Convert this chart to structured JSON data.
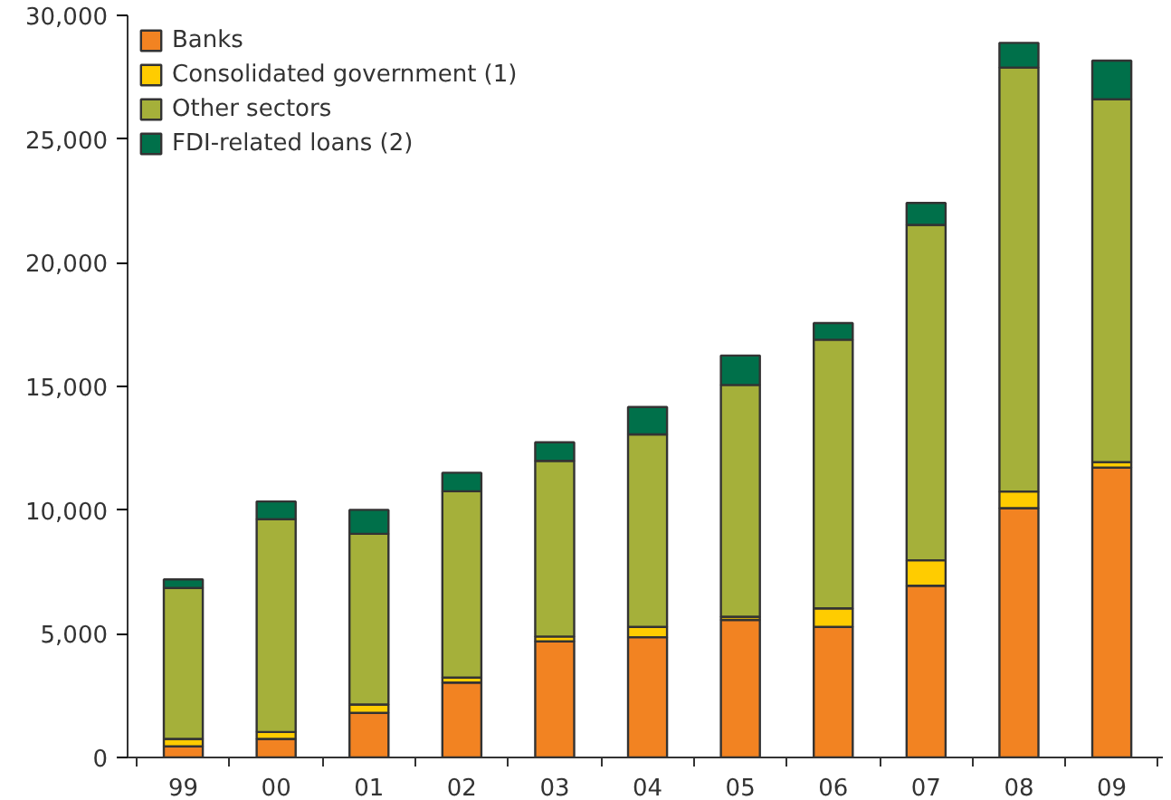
{
  "chart_data": {
    "type": "bar",
    "stacked": true,
    "categories": [
      "99",
      "00",
      "01",
      "02",
      "03",
      "04",
      "05",
      "06",
      "07",
      "08",
      "09"
    ],
    "series": [
      {
        "name": "Banks",
        "color": "#f28322",
        "values": [
          450,
          750,
          1800,
          3030,
          4690,
          4860,
          5560,
          5280,
          6940,
          10080,
          11720
        ]
      },
      {
        "name": "Consolidated government (1)",
        "color": "#ffcc00",
        "values": [
          300,
          280,
          340,
          200,
          200,
          420,
          130,
          750,
          1030,
          670,
          220
        ]
      },
      {
        "name": "Other sectors",
        "color": "#a5b03a",
        "values": [
          6100,
          8600,
          6900,
          7530,
          7100,
          7780,
          9370,
          10860,
          13560,
          17140,
          14670
        ]
      },
      {
        "name": "FDI-related loans (2)",
        "color": "#00704a",
        "values": [
          350,
          720,
          970,
          750,
          750,
          1110,
          1190,
          670,
          890,
          1000,
          1560
        ]
      }
    ],
    "ylim": [
      0,
      30000
    ],
    "yticks": [
      {
        "value": 0,
        "label": "0"
      },
      {
        "value": 5000,
        "label": "5,000"
      },
      {
        "value": 10000,
        "label": "10,000"
      },
      {
        "value": 15000,
        "label": "15,000"
      },
      {
        "value": 20000,
        "label": "20,000"
      },
      {
        "value": 25000,
        "label": "25,000"
      },
      {
        "value": 30000,
        "label": "30,000"
      }
    ],
    "grid": false,
    "legend": "top left"
  }
}
